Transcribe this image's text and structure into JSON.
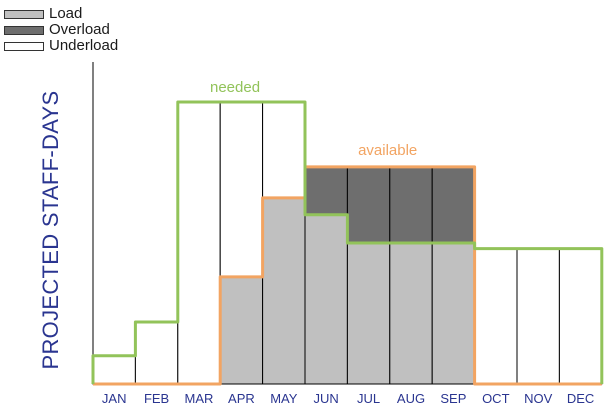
{
  "legend": {
    "load": {
      "label": "Load",
      "color": "#c0c0c0"
    },
    "overload": {
      "label": "Overload",
      "color": "#6e6e6e"
    },
    "underload": {
      "label": "Underload",
      "color": "#ffffff"
    }
  },
  "chart_data": {
    "type": "bar",
    "title": "",
    "xlabel": "",
    "ylabel": "PROJECTED STAFF-DAYS",
    "categories": [
      "JAN",
      "FEB",
      "MAR",
      "APR",
      "MAY",
      "JUN",
      "JUL",
      "AUG",
      "SEP",
      "OCT",
      "NOV",
      "DEC"
    ],
    "series": [
      {
        "name": "needed",
        "type": "step-line",
        "color": "#92c35a",
        "values": [
          1.0,
          2.2,
          10.0,
          10.0,
          10.0,
          6.0,
          5.0,
          5.0,
          5.0,
          4.8,
          4.8,
          4.8
        ]
      },
      {
        "name": "available",
        "type": "step-line",
        "color": "#f2a462",
        "values": [
          0,
          0,
          0,
          3.8,
          6.6,
          7.7,
          7.7,
          7.7,
          7.7,
          0,
          0,
          0
        ]
      }
    ],
    "ylim": [
      0,
      10.5
    ],
    "grid": false,
    "legend_position": "top-left",
    "colors": {
      "load": "#c0c0c0",
      "overload": "#6e6e6e",
      "underload": "#ffffff",
      "outline": "#000000",
      "needed": "#92c35a",
      "available": "#f2a462",
      "axis_text": "#2a3590"
    }
  }
}
